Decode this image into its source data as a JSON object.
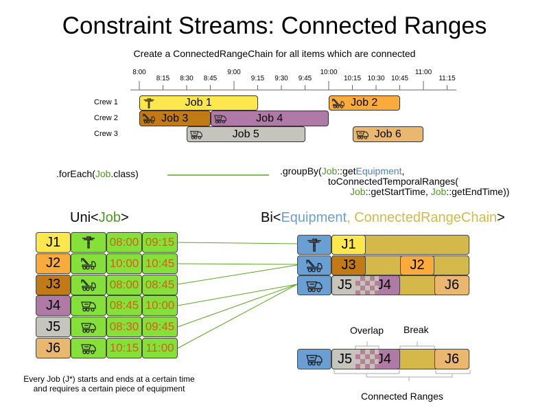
{
  "title": "Constraint Streams: Connected Ranges",
  "subtitle": "Create a ConnectedRangeChain for all items which are connected",
  "timeline": {
    "ticks": [
      "8:00",
      "8:15",
      "8:30",
      "8:45",
      "9:00",
      "9:15",
      "9:30",
      "9:45",
      "10:00",
      "10:15",
      "10:30",
      "10:45",
      "11:00",
      "11:15"
    ],
    "crews": [
      "Crew 1",
      "Crew 2",
      "Crew 3"
    ],
    "jobs": [
      {
        "label": "Job 1",
        "crew": 0,
        "start": "8:00",
        "end": "9:15",
        "color": "#fce84e",
        "icon": "jackhammer"
      },
      {
        "label": "Job 2",
        "crew": 0,
        "start": "10:00",
        "end": "10:45",
        "color": "#fbab3c",
        "icon": "tow-truck"
      },
      {
        "label": "Job 3",
        "crew": 1,
        "start": "8:00",
        "end": "8:45",
        "color": "#c27a17",
        "icon": "tow-truck"
      },
      {
        "label": "Job 4",
        "crew": 1,
        "start": "8:45",
        "end": "10:00",
        "color": "#b07aa6",
        "icon": "dump-truck"
      },
      {
        "label": "Job 5",
        "crew": 2,
        "start": "8:30",
        "end": "9:45",
        "color": "#c5c5bd",
        "icon": "dump-truck"
      },
      {
        "label": "Job 6",
        "crew": 2,
        "start": "10:15",
        "end": "11:00",
        "color": "#e9b86e",
        "icon": "dump-truck"
      }
    ]
  },
  "code": {
    "foreach_prefix": ".forEach(",
    "foreach_job": "Job",
    "foreach_suffix": ".class)",
    "groupby_prefix": ".groupBy(",
    "job": "Job",
    "getter": "::get",
    "equipment": "Equipment",
    "comma": ",",
    "line2": "toConnectedTemporalRanges(",
    "start_getter": "::getStartTime, ",
    "end_getter": "::getEndTime))"
  },
  "uni": {
    "prefix": "Uni<",
    "type": "Job",
    "suffix": ">"
  },
  "bi": {
    "prefix": "Bi<",
    "type1": "Equipment",
    "sep": ", ",
    "type2": "ConnectedRangeChain",
    "suffix": ">"
  },
  "table": [
    {
      "id": "J1",
      "icon": "jackhammer",
      "start": "08:00",
      "end": "09:15",
      "color": "#fce84e"
    },
    {
      "id": "J2",
      "icon": "tow-truck",
      "start": "10:00",
      "end": "10:45",
      "color": "#fbab3c"
    },
    {
      "id": "J3",
      "icon": "tow-truck",
      "start": "08:00",
      "end": "08:45",
      "color": "#c27a17"
    },
    {
      "id": "J4",
      "icon": "dump-truck",
      "start": "08:45",
      "end": "10:00",
      "color": "#b07aa6"
    },
    {
      "id": "J5",
      "icon": "dump-truck",
      "start": "08:30",
      "end": "09:45",
      "color": "#c5c5bd"
    },
    {
      "id": "J6",
      "icon": "dump-truck",
      "start": "10:15",
      "end": "11:00",
      "color": "#e9b86e"
    }
  ],
  "chains": {
    "j1": "J1",
    "j3": "J3",
    "j2": "J2",
    "j5": "J5",
    "j4": "J4",
    "j6": "J6"
  },
  "annotations": {
    "overlap": "Overlap",
    "break": "Break",
    "connected": "Connected Ranges"
  },
  "footnote": {
    "line1": "Every Job (J*) starts and ends at a certain time",
    "line2": "and requires a certain piece of equipment"
  },
  "colors": {
    "green": "#86e03a",
    "equipment": "#6a9fd4",
    "chain": "#d4b94a",
    "time": "#d0601a"
  }
}
